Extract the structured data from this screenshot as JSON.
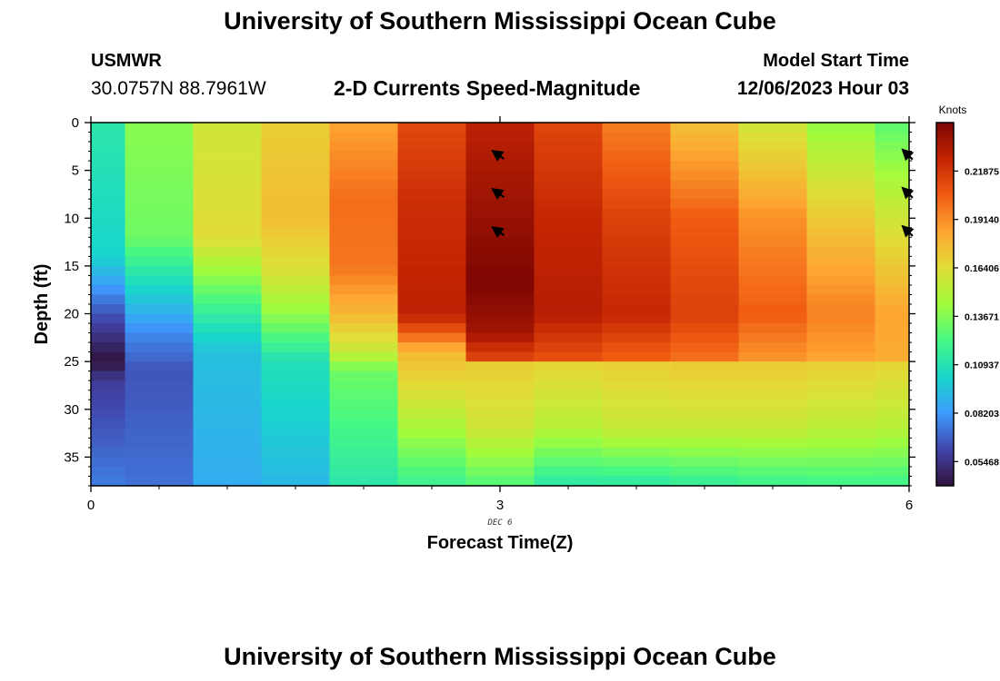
{
  "header": {
    "title": "University of Southern Mississippi Ocean Cube",
    "station_name": "USMWR",
    "station_coords": "30.0757N  88.7961W",
    "subtitle": "2-D Currents Speed-Magnitude",
    "model_start_label": "Model Start Time",
    "model_start_value": "12/06/2023 Hour 03"
  },
  "footer": {
    "title": "University of Southern Mississippi Ocean Cube"
  },
  "chart_data": {
    "type": "heatmap",
    "xlabel": "Forecast Time(Z)",
    "ylabel": "Depth (ft)",
    "x_date_label": "DEC 6",
    "xlim": [
      0,
      6
    ],
    "ylim": [
      0,
      38
    ],
    "y_inverted": true,
    "x_ticks": [
      0,
      3,
      6
    ],
    "y_ticks": [
      0,
      5,
      10,
      15,
      20,
      25,
      30,
      35
    ],
    "colorbar": {
      "label": "Knots",
      "min": 0.041,
      "max": 0.2461,
      "ticks": [
        0.05468,
        0.08203,
        0.10937,
        0.13671,
        0.16406,
        0.1914,
        0.21875
      ],
      "tick_labels": [
        "0.05468",
        "0.08203",
        "0.10937",
        "0.13671",
        "0.16406",
        "0.19140",
        "0.21875"
      ]
    },
    "colormap_stops": [
      {
        "v": 0.0,
        "color": "#30123b"
      },
      {
        "v": 0.1,
        "color": "#4145ab"
      },
      {
        "v": 0.2,
        "color": "#3e9bfe"
      },
      {
        "v": 0.3,
        "color": "#18d6cb"
      },
      {
        "v": 0.4,
        "color": "#46f884"
      },
      {
        "v": 0.5,
        "color": "#a2fc3c"
      },
      {
        "v": 0.6,
        "color": "#e1dd37"
      },
      {
        "v": 0.7,
        "color": "#fea632"
      },
      {
        "v": 0.8,
        "color": "#f05b12"
      },
      {
        "v": 0.9,
        "color": "#c42503"
      },
      {
        "v": 1.0,
        "color": "#7a0403"
      }
    ],
    "time_steps": [
      0,
      0.5,
      1,
      1.5,
      2,
      2.5,
      3,
      3.5,
      4,
      4.5,
      5,
      5.5,
      6
    ],
    "columns": [
      {
        "t": 0,
        "profile": [
          [
            0,
            0.112
          ],
          [
            14,
            0.102
          ],
          [
            20,
            0.065
          ],
          [
            25,
            0.041
          ],
          [
            27,
            0.058
          ],
          [
            38,
            0.075
          ]
        ]
      },
      {
        "t": 0.5,
        "profile": [
          [
            0,
            0.138
          ],
          [
            12,
            0.132
          ],
          [
            16,
            0.11
          ],
          [
            22,
            0.078
          ],
          [
            26,
            0.065
          ],
          [
            38,
            0.072
          ]
        ]
      },
      {
        "t": 1,
        "profile": [
          [
            0,
            0.158
          ],
          [
            12,
            0.164
          ],
          [
            16,
            0.14
          ],
          [
            20,
            0.115
          ],
          [
            24,
            0.095
          ],
          [
            38,
            0.088
          ]
        ]
      },
      {
        "t": 1.5,
        "profile": [
          [
            0,
            0.17
          ],
          [
            10,
            0.176
          ],
          [
            16,
            0.16
          ],
          [
            20,
            0.14
          ],
          [
            25,
            0.108
          ],
          [
            38,
            0.092
          ]
        ]
      },
      {
        "t": 2,
        "profile": [
          [
            0,
            0.185
          ],
          [
            8,
            0.2
          ],
          [
            15,
            0.198
          ],
          [
            20,
            0.178
          ],
          [
            24,
            0.155
          ],
          [
            26,
            0.132
          ],
          [
            38,
            0.112
          ]
        ]
      },
      {
        "t": 2.5,
        "profile": [
          [
            0,
            0.212
          ],
          [
            8,
            0.222
          ],
          [
            20,
            0.228
          ],
          [
            22,
            0.205
          ],
          [
            24,
            0.178
          ],
          [
            30,
            0.155
          ],
          [
            38,
            0.118
          ]
        ]
      },
      {
        "t": 3,
        "profile": [
          [
            0,
            0.228
          ],
          [
            10,
            0.238
          ],
          [
            17,
            0.245
          ],
          [
            22,
            0.235
          ],
          [
            24.5,
            0.215
          ],
          [
            25,
            0.17
          ],
          [
            32,
            0.158
          ],
          [
            38,
            0.125
          ]
        ]
      },
      {
        "t": 3.5,
        "profile": [
          [
            0,
            0.213
          ],
          [
            10,
            0.225
          ],
          [
            20,
            0.23
          ],
          [
            24.5,
            0.21
          ],
          [
            25,
            0.168
          ],
          [
            32,
            0.15
          ],
          [
            38,
            0.112
          ]
        ]
      },
      {
        "t": 4,
        "profile": [
          [
            0,
            0.195
          ],
          [
            10,
            0.215
          ],
          [
            20,
            0.225
          ],
          [
            24.5,
            0.205
          ],
          [
            25,
            0.17
          ],
          [
            32,
            0.155
          ],
          [
            38,
            0.112
          ]
        ]
      },
      {
        "t": 4.5,
        "profile": [
          [
            0,
            0.175
          ],
          [
            10,
            0.205
          ],
          [
            20,
            0.215
          ],
          [
            24.5,
            0.2
          ],
          [
            25,
            0.172
          ],
          [
            32,
            0.155
          ],
          [
            38,
            0.115
          ]
        ]
      },
      {
        "t": 5,
        "profile": [
          [
            0,
            0.158
          ],
          [
            10,
            0.19
          ],
          [
            20,
            0.205
          ],
          [
            24.5,
            0.19
          ],
          [
            25,
            0.172
          ],
          [
            32,
            0.155
          ],
          [
            38,
            0.118
          ]
        ]
      },
      {
        "t": 5.5,
        "profile": [
          [
            0,
            0.14
          ],
          [
            10,
            0.172
          ],
          [
            20,
            0.195
          ],
          [
            24.5,
            0.185
          ],
          [
            25,
            0.17
          ],
          [
            32,
            0.152
          ],
          [
            38,
            0.12
          ]
        ]
      },
      {
        "t": 6,
        "profile": [
          [
            0,
            0.128
          ],
          [
            10,
            0.158
          ],
          [
            20,
            0.185
          ],
          [
            24.5,
            0.182
          ],
          [
            25,
            0.168
          ],
          [
            32,
            0.15
          ],
          [
            38,
            0.12
          ]
        ]
      }
    ],
    "vectors": [
      {
        "t": 3,
        "depth": 3.5,
        "angle_deg": 145
      },
      {
        "t": 3,
        "depth": 7.5,
        "angle_deg": 145
      },
      {
        "t": 3,
        "depth": 11.5,
        "angle_deg": 145
      },
      {
        "t": 6,
        "depth": 3.5,
        "angle_deg": 135
      },
      {
        "t": 6,
        "depth": 7.5,
        "angle_deg": 135
      },
      {
        "t": 6,
        "depth": 11.5,
        "angle_deg": 135
      }
    ]
  }
}
